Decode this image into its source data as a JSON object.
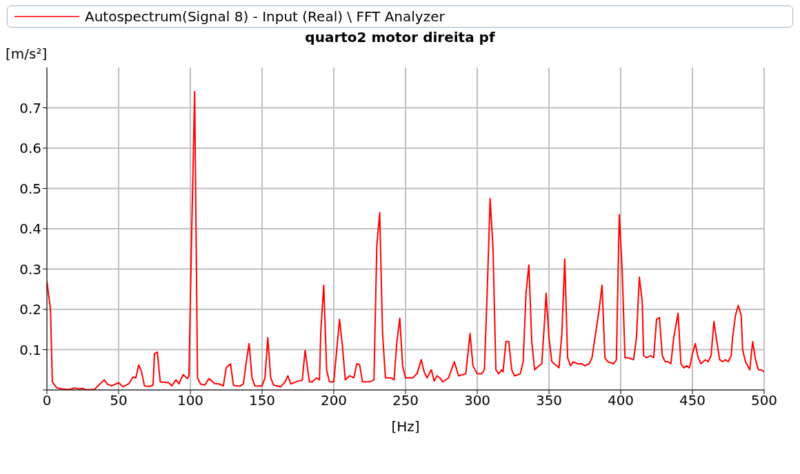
{
  "chart_data": {
    "type": "line",
    "title": "quarto2 motor direita pf",
    "xlabel": "[Hz]",
    "ylabel": "[m/s²]",
    "x": [
      0,
      2.5,
      3.8,
      7,
      10,
      15,
      20,
      22,
      25,
      27,
      33,
      37,
      40,
      42,
      45,
      50,
      53,
      57,
      60,
      62,
      64,
      66,
      68,
      72,
      74,
      75,
      77,
      79,
      85,
      87,
      90,
      92,
      95,
      98,
      99,
      101,
      103,
      105,
      107,
      110,
      113,
      115,
      117,
      120,
      123,
      125,
      128,
      130,
      132,
      135,
      137,
      139,
      141,
      143,
      145,
      150,
      152,
      154,
      156,
      158,
      163,
      166,
      168,
      170,
      175,
      178,
      180,
      183,
      185,
      188,
      190,
      191,
      193,
      195,
      197,
      200,
      204,
      206,
      208,
      211,
      214,
      216,
      218,
      220,
      225,
      228,
      230,
      232,
      234,
      236,
      240,
      242,
      244,
      246,
      248,
      250,
      255,
      258,
      261,
      263,
      265,
      268,
      270,
      272,
      274,
      276,
      280,
      284,
      287,
      292,
      295,
      297,
      300,
      303,
      305,
      307,
      309,
      311,
      313,
      315,
      317,
      318,
      320,
      322,
      324,
      326,
      330,
      332,
      334,
      336,
      338,
      340,
      343,
      345,
      347,
      348,
      350,
      352,
      357,
      359,
      361,
      363,
      365,
      367,
      370,
      373,
      375,
      378,
      380,
      385,
      387,
      389,
      391,
      395,
      397,
      399,
      401,
      403,
      405,
      409,
      411,
      413,
      415,
      416,
      418,
      421,
      423,
      425,
      427,
      429,
      431,
      433,
      435,
      437,
      440,
      442,
      444,
      446,
      448,
      450,
      452,
      454,
      456,
      459,
      461,
      463,
      465,
      467,
      469,
      471,
      473,
      475,
      477,
      478,
      480,
      482,
      484,
      485,
      487,
      490,
      492,
      494,
      496,
      498,
      500
    ],
    "series": [
      {
        "name": "Autospectrum(Signal 8) - Input (Real) \\ FFT Analyzer",
        "color": "#ff0000",
        "values": [
          0.27,
          0.2,
          0.02,
          0.005,
          0.003,
          0.001,
          0.005,
          0.002,
          0.004,
          0.001,
          0.001,
          0.015,
          0.025,
          0.015,
          0.01,
          0.018,
          0.008,
          0.015,
          0.032,
          0.03,
          0.062,
          0.045,
          0.01,
          0.009,
          0.012,
          0.09,
          0.094,
          0.02,
          0.018,
          0.01,
          0.025,
          0.015,
          0.038,
          0.028,
          0.035,
          0.4,
          0.74,
          0.03,
          0.015,
          0.012,
          0.028,
          0.022,
          0.016,
          0.015,
          0.01,
          0.055,
          0.065,
          0.012,
          0.01,
          0.01,
          0.015,
          0.07,
          0.115,
          0.03,
          0.01,
          0.01,
          0.03,
          0.13,
          0.03,
          0.012,
          0.008,
          0.02,
          0.035,
          0.015,
          0.022,
          0.024,
          0.098,
          0.02,
          0.02,
          0.03,
          0.025,
          0.15,
          0.26,
          0.05,
          0.02,
          0.02,
          0.175,
          0.11,
          0.025,
          0.035,
          0.03,
          0.065,
          0.063,
          0.02,
          0.02,
          0.025,
          0.36,
          0.44,
          0.14,
          0.03,
          0.03,
          0.025,
          0.12,
          0.178,
          0.06,
          0.03,
          0.03,
          0.04,
          0.075,
          0.045,
          0.03,
          0.05,
          0.022,
          0.035,
          0.03,
          0.02,
          0.03,
          0.07,
          0.035,
          0.04,
          0.14,
          0.06,
          0.04,
          0.04,
          0.05,
          0.25,
          0.475,
          0.35,
          0.05,
          0.04,
          0.05,
          0.045,
          0.12,
          0.12,
          0.05,
          0.035,
          0.04,
          0.07,
          0.24,
          0.31,
          0.12,
          0.05,
          0.06,
          0.065,
          0.175,
          0.24,
          0.13,
          0.07,
          0.055,
          0.14,
          0.325,
          0.08,
          0.06,
          0.07,
          0.065,
          0.065,
          0.06,
          0.065,
          0.08,
          0.2,
          0.26,
          0.08,
          0.07,
          0.065,
          0.075,
          0.435,
          0.3,
          0.08,
          0.08,
          0.075,
          0.13,
          0.28,
          0.22,
          0.085,
          0.08,
          0.085,
          0.08,
          0.175,
          0.18,
          0.085,
          0.07,
          0.07,
          0.065,
          0.13,
          0.19,
          0.065,
          0.055,
          0.06,
          0.055,
          0.09,
          0.115,
          0.08,
          0.065,
          0.075,
          0.07,
          0.085,
          0.17,
          0.12,
          0.075,
          0.07,
          0.075,
          0.07,
          0.085,
          0.13,
          0.185,
          0.21,
          0.185,
          0.1,
          0.07,
          0.05,
          0.12,
          0.075,
          0.05,
          0.05,
          0.045
        ]
      }
    ],
    "xlim": [
      0,
      500
    ],
    "xticks": [
      0,
      50,
      100,
      150,
      200,
      250,
      300,
      350,
      400,
      450,
      500
    ],
    "ylim": [
      0,
      0.8
    ],
    "yticks": [
      {
        "value": 0,
        "label": null
      },
      0.1,
      0.2,
      0.3,
      0.4,
      0.5,
      0.6,
      0.7
    ],
    "grid": true,
    "legend": "top",
    "marker": "none",
    "line_style": "solid"
  }
}
